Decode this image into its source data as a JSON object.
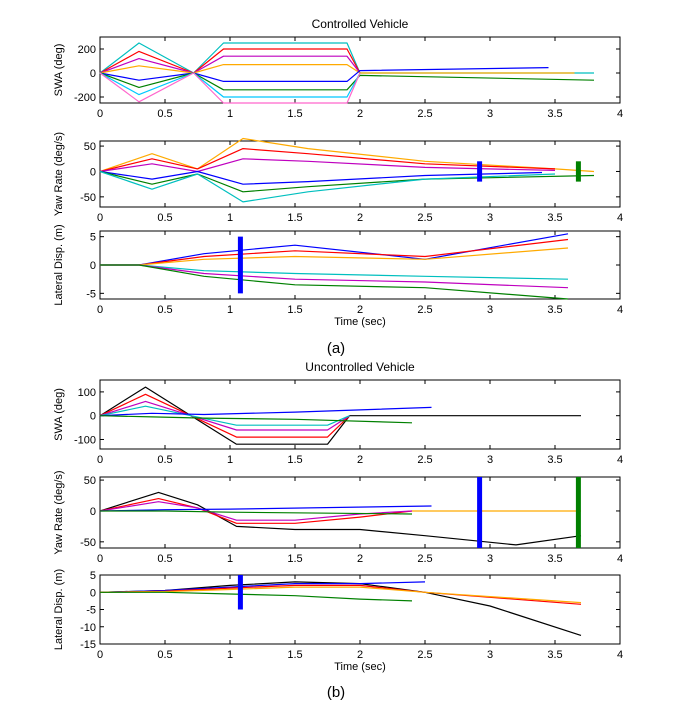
{
  "captions": {
    "a": "(a)",
    "b": "(b)"
  },
  "palette": [
    "#0000ff",
    "#008000",
    "#ff0000",
    "#00bfbf",
    "#bf00bf",
    "#bfbf00",
    "#000000",
    "#ffaa00",
    "#ff66cc",
    "#7f7fff",
    "#00c8ff",
    "#8b4513"
  ],
  "chart_data": [
    {
      "type": "line",
      "title": "Controlled Vehicle",
      "ylabel": "SWA (deg)",
      "xlim": [
        0,
        4
      ],
      "ylim": [
        -250,
        300
      ],
      "xticks": [
        0,
        0.5,
        1,
        1.5,
        2,
        2.5,
        3,
        3.5,
        4
      ],
      "yticks": [
        -200,
        0,
        200
      ],
      "series": [
        {
          "color": "#00bfbf",
          "x": [
            0,
            0.3,
            0.72,
            0.95,
            1.9,
            2.0,
            3.8
          ],
          "y": [
            0,
            250,
            0,
            250,
            250,
            0,
            0
          ]
        },
        {
          "color": "#ff0000",
          "x": [
            0,
            0.3,
            0.72,
            0.95,
            1.9,
            2.0
          ],
          "y": [
            0,
            180,
            0,
            200,
            200,
            0
          ]
        },
        {
          "color": "#bf00bf",
          "x": [
            0,
            0.3,
            0.72,
            0.95,
            1.9,
            2.0
          ],
          "y": [
            0,
            120,
            0,
            140,
            140,
            0
          ]
        },
        {
          "color": "#ffaa00",
          "x": [
            0,
            0.3,
            0.72,
            0.95,
            1.9,
            2.0,
            3.65
          ],
          "y": [
            0,
            60,
            0,
            70,
            70,
            0,
            0
          ]
        },
        {
          "color": "#0000ff",
          "x": [
            0,
            0.3,
            0.72,
            0.95,
            1.9,
            2.0,
            3.45
          ],
          "y": [
            0,
            -60,
            0,
            -70,
            -70,
            20,
            45
          ]
        },
        {
          "color": "#008000",
          "x": [
            0,
            0.3,
            0.72,
            0.95,
            1.9,
            2.0,
            3.8
          ],
          "y": [
            0,
            -120,
            0,
            -140,
            -140,
            -20,
            -60
          ]
        },
        {
          "color": "#00c8ff",
          "x": [
            0,
            0.3,
            0.72,
            0.95,
            1.9,
            2.0
          ],
          "y": [
            0,
            -180,
            0,
            -200,
            -200,
            0
          ]
        },
        {
          "color": "#ff66cc",
          "x": [
            0,
            0.3,
            0.72,
            0.95,
            1.9,
            2.0
          ],
          "y": [
            0,
            -240,
            0,
            -250,
            -250,
            0
          ]
        }
      ],
      "markers": []
    },
    {
      "type": "line",
      "title": "",
      "ylabel": "Yaw Rate (deg/s)",
      "xlim": [
        0,
        4
      ],
      "ylim": [
        -70,
        60
      ],
      "xticks": [
        0,
        0.5,
        1,
        1.5,
        2,
        2.5,
        3,
        3.5,
        4
      ],
      "yticks": [
        -50,
        0,
        50
      ],
      "series": [
        {
          "color": "#ffaa00",
          "x": [
            0,
            0.4,
            0.75,
            1.1,
            1.6,
            2.5,
            3.5,
            3.8
          ],
          "y": [
            0,
            35,
            5,
            65,
            45,
            20,
            5,
            0
          ]
        },
        {
          "color": "#ff0000",
          "x": [
            0,
            0.4,
            0.75,
            1.1,
            1.6,
            2.5,
            3.5
          ],
          "y": [
            0,
            25,
            5,
            45,
            35,
            15,
            5
          ]
        },
        {
          "color": "#bf00bf",
          "x": [
            0,
            0.4,
            0.75,
            1.1,
            1.6,
            2.5,
            3.5
          ],
          "y": [
            0,
            15,
            0,
            25,
            20,
            8,
            2
          ]
        },
        {
          "color": "#0000ff",
          "x": [
            0,
            0.4,
            0.75,
            1.1,
            1.6,
            2.5,
            3.4
          ],
          "y": [
            0,
            -15,
            0,
            -25,
            -20,
            -8,
            -2
          ]
        },
        {
          "color": "#008000",
          "x": [
            0,
            0.4,
            0.75,
            1.1,
            1.6,
            2.5,
            3.8
          ],
          "y": [
            0,
            -25,
            -5,
            -40,
            -30,
            -15,
            -8
          ]
        },
        {
          "color": "#00bfbf",
          "x": [
            0,
            0.4,
            0.75,
            1.1,
            1.6,
            2.5,
            3.5
          ],
          "y": [
            0,
            -35,
            -5,
            -60,
            -40,
            -15,
            -5
          ]
        }
      ],
      "markers": [
        {
          "x": 2.92,
          "y1": -20,
          "y2": 20,
          "color": "#0000ff"
        },
        {
          "x": 3.68,
          "y1": -20,
          "y2": 20,
          "color": "#008000"
        }
      ]
    },
    {
      "type": "line",
      "title": "",
      "ylabel": "Lateral Disp. (m)",
      "xlim": [
        0,
        4
      ],
      "ylim": [
        -6,
        6
      ],
      "xticks": [
        0,
        0.5,
        1,
        1.5,
        2,
        2.5,
        3,
        3.5,
        4
      ],
      "yticks": [
        -5,
        0,
        5
      ],
      "series": [
        {
          "color": "#0000ff",
          "x": [
            0,
            0.3,
            0.8,
            1.5,
            2.5,
            3.6
          ],
          "y": [
            0,
            0,
            2,
            3.5,
            1,
            5.5
          ]
        },
        {
          "color": "#ff0000",
          "x": [
            0,
            0.3,
            0.8,
            1.5,
            2.5,
            3.6
          ],
          "y": [
            0,
            0,
            1.5,
            2.5,
            1.5,
            4.5
          ]
        },
        {
          "color": "#ffaa00",
          "x": [
            0,
            0.3,
            0.8,
            1.5,
            2.5,
            3.6
          ],
          "y": [
            0,
            0,
            1,
            1.5,
            1,
            3
          ]
        },
        {
          "color": "#00bfbf",
          "x": [
            0,
            0.3,
            0.8,
            1.5,
            2.5,
            3.6
          ],
          "y": [
            0,
            0,
            -1,
            -1.5,
            -2,
            -2.5
          ]
        },
        {
          "color": "#bf00bf",
          "x": [
            0,
            0.3,
            0.8,
            1.5,
            2.5,
            3.6
          ],
          "y": [
            0,
            0,
            -1.5,
            -2.5,
            -3,
            -4
          ]
        },
        {
          "color": "#008000",
          "x": [
            0,
            0.3,
            0.8,
            1.5,
            2.5,
            3.6
          ],
          "y": [
            0,
            0,
            -2,
            -3.5,
            -4,
            -6
          ]
        }
      ],
      "markers": [
        {
          "x": 1.08,
          "y1": -5,
          "y2": 5,
          "color": "#0000ff"
        }
      ]
    },
    {
      "type": "line",
      "title": "Uncontrolled Vehicle",
      "ylabel": "SWA (deg)",
      "xlim": [
        0,
        4
      ],
      "ylim": [
        -140,
        150
      ],
      "xticks": [
        0,
        0.5,
        1,
        1.5,
        2,
        2.5,
        3,
        3.5,
        4
      ],
      "yticks": [
        -100,
        0,
        100
      ],
      "series": [
        {
          "color": "#000000",
          "x": [
            0,
            0.35,
            0.7,
            1.05,
            1.75,
            1.92,
            3.7
          ],
          "y": [
            0,
            120,
            0,
            -120,
            -120,
            0,
            0
          ]
        },
        {
          "color": "#ff0000",
          "x": [
            0,
            0.35,
            0.7,
            1.05,
            1.75,
            1.92
          ],
          "y": [
            0,
            90,
            0,
            -90,
            -90,
            0
          ]
        },
        {
          "color": "#bf00bf",
          "x": [
            0,
            0.35,
            0.7,
            1.05,
            1.75,
            1.92
          ],
          "y": [
            0,
            60,
            0,
            -60,
            -60,
            0
          ]
        },
        {
          "color": "#00bfbf",
          "x": [
            0,
            0.35,
            0.7,
            1.05,
            1.75,
            1.92
          ],
          "y": [
            0,
            40,
            0,
            -40,
            -40,
            0
          ]
        },
        {
          "color": "#0000ff",
          "x": [
            0,
            0.4,
            0.8,
            1.5,
            2.55
          ],
          "y": [
            0,
            10,
            5,
            15,
            35
          ]
        },
        {
          "color": "#008000",
          "x": [
            0,
            0.4,
            0.8,
            1.5,
            2.4
          ],
          "y": [
            0,
            -5,
            -10,
            -15,
            -30
          ]
        }
      ],
      "markers": []
    },
    {
      "type": "line",
      "title": "",
      "ylabel": "Yaw Rate (deg/s)",
      "xlim": [
        0,
        4
      ],
      "ylim": [
        -60,
        55
      ],
      "xticks": [
        0,
        0.5,
        1,
        1.5,
        2,
        2.5,
        3,
        3.5,
        4
      ],
      "yticks": [
        -50,
        0,
        50
      ],
      "series": [
        {
          "color": "#000000",
          "x": [
            0,
            0.45,
            0.75,
            1.05,
            1.5,
            2.0,
            2.5,
            3.2,
            3.7
          ],
          "y": [
            0,
            30,
            10,
            -25,
            -30,
            -30,
            -40,
            -55,
            -40
          ]
        },
        {
          "color": "#ff0000",
          "x": [
            0,
            0.45,
            0.75,
            1.05,
            1.5,
            2.0,
            2.4
          ],
          "y": [
            0,
            20,
            5,
            -20,
            -20,
            -10,
            0
          ]
        },
        {
          "color": "#bf00bf",
          "x": [
            0,
            0.45,
            0.75,
            1.05,
            1.5,
            2.0,
            2.4
          ],
          "y": [
            0,
            15,
            5,
            -15,
            -15,
            -5,
            0
          ]
        },
        {
          "color": "#0000ff",
          "x": [
            0,
            0.5,
            1.0,
            2.55
          ],
          "y": [
            0,
            2,
            3,
            8
          ]
        },
        {
          "color": "#008000",
          "x": [
            0,
            0.5,
            1.0,
            2.4
          ],
          "y": [
            0,
            0,
            -2,
            -5
          ]
        },
        {
          "color": "#ffaa00",
          "x": [
            2.4,
            3.7
          ],
          "y": [
            0,
            0
          ]
        }
      ],
      "markers": [
        {
          "x": 2.92,
          "y1": -60,
          "y2": 55,
          "color": "#0000ff"
        },
        {
          "x": 3.68,
          "y1": -60,
          "y2": 55,
          "color": "#008000"
        }
      ]
    },
    {
      "type": "line",
      "title": "",
      "ylabel": "Lateral Disp. (m)",
      "xaxis_label": "Time (sec)",
      "xlim": [
        0,
        4
      ],
      "ylim": [
        -15,
        5
      ],
      "xticks": [
        0,
        0.5,
        1,
        1.5,
        2,
        2.5,
        3,
        3.5,
        4
      ],
      "yticks": [
        -15,
        -10,
        -5,
        0,
        5
      ],
      "series": [
        {
          "color": "#000000",
          "x": [
            0,
            0.5,
            1.0,
            1.5,
            2.0,
            2.5,
            3.0,
            3.7
          ],
          "y": [
            0,
            0.5,
            2,
            3,
            2.5,
            0,
            -4,
            -12.5
          ]
        },
        {
          "color": "#0000ff",
          "x": [
            0,
            0.5,
            1.0,
            1.5,
            2.0,
            2.5
          ],
          "y": [
            0,
            0.5,
            1.5,
            2.5,
            2.5,
            3
          ]
        },
        {
          "color": "#ff0000",
          "x": [
            0,
            0.5,
            1.0,
            1.5,
            2.0,
            2.5,
            3.7
          ],
          "y": [
            0,
            0.3,
            1.2,
            2,
            2,
            0,
            -3.5
          ]
        },
        {
          "color": "#ffaa00",
          "x": [
            0,
            0.5,
            1.0,
            1.5,
            2.0,
            2.5,
            3.7
          ],
          "y": [
            0,
            0.2,
            0.8,
            1.5,
            1.5,
            0,
            -3
          ]
        },
        {
          "color": "#008000",
          "x": [
            0,
            0.5,
            1.0,
            1.5,
            2.0,
            2.4
          ],
          "y": [
            0,
            0,
            -0.5,
            -1,
            -2,
            -2.5
          ]
        }
      ],
      "markers": [
        {
          "x": 1.08,
          "y1": -5,
          "y2": 5,
          "color": "#0000ff"
        }
      ]
    }
  ]
}
